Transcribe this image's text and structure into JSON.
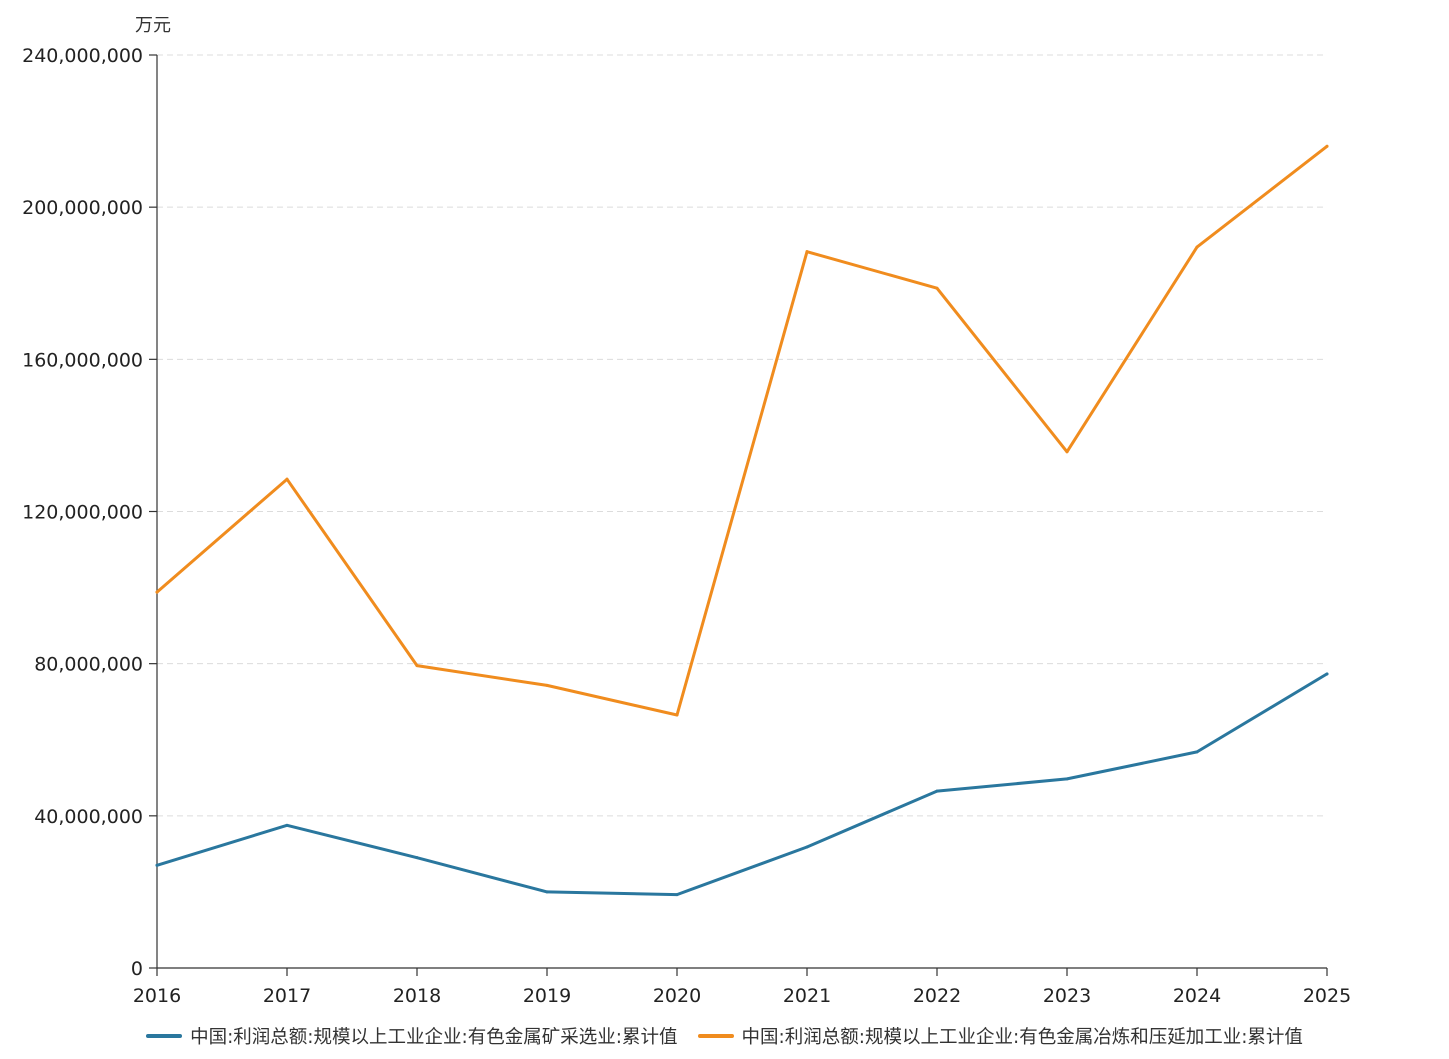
{
  "chart_data": {
    "type": "line",
    "unit": "万元",
    "categories": [
      "2016",
      "2017",
      "2018",
      "2019",
      "2020",
      "2021",
      "2022",
      "2023",
      "2024",
      "2025"
    ],
    "ylim": [
      0,
      240000000
    ],
    "yticks": [
      0,
      40000000,
      80000000,
      120000000,
      160000000,
      200000000,
      240000000
    ],
    "ytick_labels": [
      "0",
      "40,000,000",
      "80,000,000",
      "120,000,000",
      "160,000,000",
      "200,000,000",
      "240,000,000"
    ],
    "grid": true,
    "legend_position": "bottom",
    "series": [
      {
        "name": "中国:利润总额:规模以上工业企业:有色金属矿采选业:累计值",
        "color": "#2a779e",
        "values": [
          27000000,
          37500000,
          29000000,
          20000000,
          19300000,
          31800000,
          46500000,
          49700000,
          56800000,
          77300000
        ]
      },
      {
        "name": "中国:利润总额:规模以上工业企业:有色金属冶炼和压延加工业:累计值",
        "color": "#f08c1e",
        "values": [
          98800000,
          128500000,
          79500000,
          74300000,
          66500000,
          188300000,
          178700000,
          135700000,
          189500000,
          216000000
        ]
      }
    ]
  }
}
